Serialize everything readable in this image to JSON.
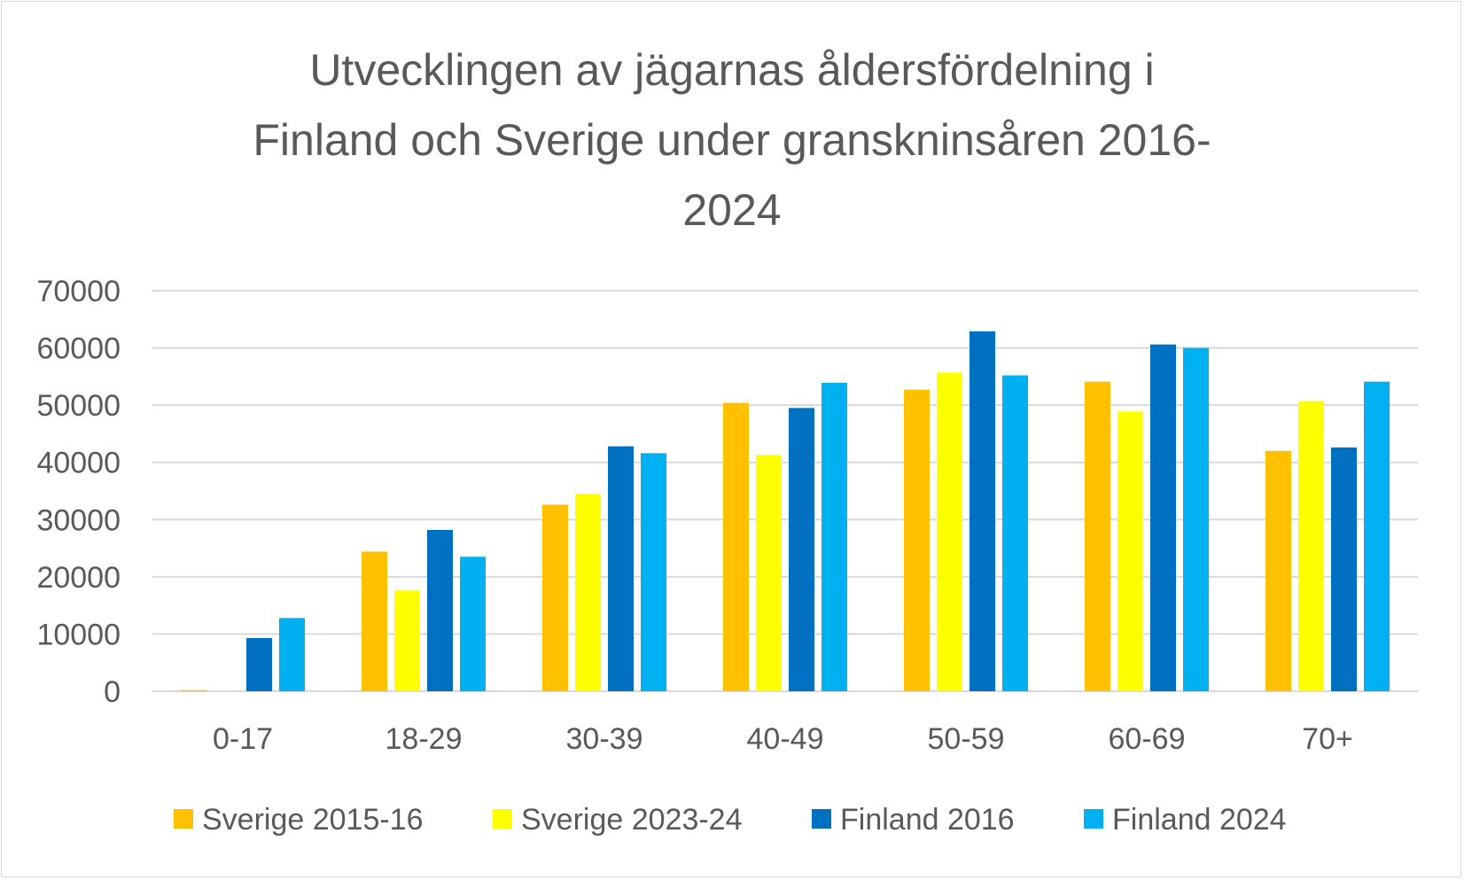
{
  "chart_data": {
    "type": "bar",
    "title": "Utvecklingen av jägarnas åldersfördelning i Finland och Sverige under granskninsåren 2016-2024",
    "title_lines": [
      "Utvecklingen av jägarnas åldersfördelning i",
      "Finland och Sverige under granskninsåren 2016-",
      "2024"
    ],
    "xlabel": "",
    "ylabel": "",
    "categories": [
      "0-17",
      "18-29",
      "30-39",
      "40-49",
      "50-59",
      "60-69",
      "70+"
    ],
    "ylim": [
      0,
      70000
    ],
    "yticks": [
      0,
      10000,
      20000,
      30000,
      40000,
      50000,
      60000,
      70000
    ],
    "grid": true,
    "legend_position": "bottom",
    "series": [
      {
        "name": "Sverige 2015-16",
        "color": "#FFC000",
        "values": [
          200,
          24400,
          32600,
          50400,
          52700,
          54100,
          42000
        ]
      },
      {
        "name": "Sverige 2023-24",
        "color": "#FFFF00",
        "values": [
          0,
          17600,
          34500,
          41300,
          55700,
          48900,
          50700
        ]
      },
      {
        "name": "Finland 2016",
        "color": "#0070C0",
        "values": [
          9300,
          28200,
          42800,
          49500,
          62900,
          60600,
          42600
        ]
      },
      {
        "name": "Finland 2024",
        "color": "#00B0F0",
        "values": [
          12800,
          23500,
          41600,
          53900,
          55200,
          60000,
          54100
        ]
      }
    ]
  },
  "colors": {
    "text": "#595959",
    "gridline": "#d9d9d9",
    "background": "#ffffff"
  }
}
